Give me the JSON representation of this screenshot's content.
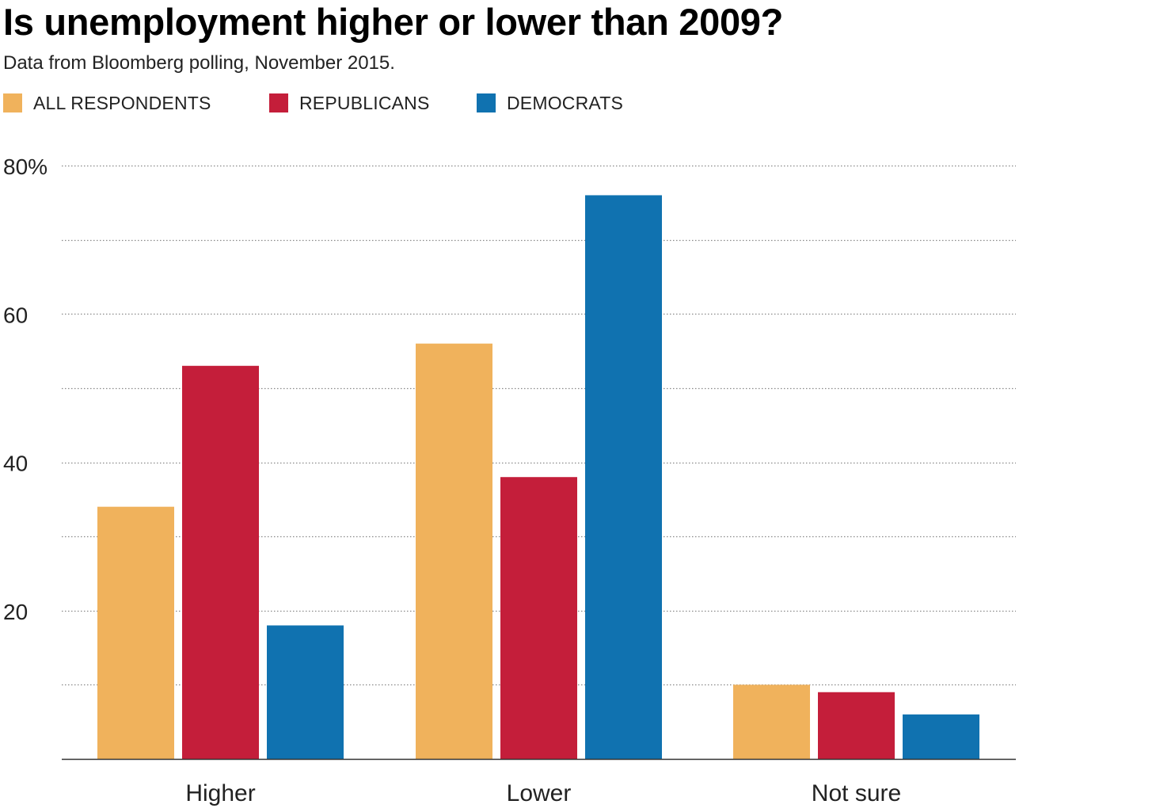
{
  "title": "Is unemployment higher or lower than 2009?",
  "subtitle": "Data from Bloomberg polling, November 2015.",
  "legend": [
    {
      "label": "ALL RESPONDENTS",
      "color": "#f0b25c"
    },
    {
      "label": "REPUBLICANS",
      "color": "#c41e3a"
    },
    {
      "label": "DEMOCRATS",
      "color": "#1072b0"
    }
  ],
  "chart_data": {
    "type": "bar",
    "categories": [
      "Higher",
      "Lower",
      "Not sure"
    ],
    "series": [
      {
        "name": "ALL RESPONDENTS",
        "color": "#f0b25c",
        "values": [
          34,
          56,
          10
        ]
      },
      {
        "name": "REPUBLICANS",
        "color": "#c41e3a",
        "values": [
          53,
          38,
          9
        ]
      },
      {
        "name": "DEMOCRATS",
        "color": "#1072b0",
        "values": [
          18,
          76,
          6
        ]
      }
    ],
    "ylim": [
      0,
      80
    ],
    "yticks": [
      {
        "value": 20,
        "label": "20"
      },
      {
        "value": 40,
        "label": "40"
      },
      {
        "value": 60,
        "label": "60"
      },
      {
        "value": 80,
        "label": "80%"
      }
    ],
    "gridlines": [
      10,
      20,
      30,
      40,
      50,
      60,
      70,
      80
    ],
    "grid": true,
    "grid_style": "dotted",
    "legend_position": "top-left",
    "xlabel": "",
    "ylabel": ""
  }
}
